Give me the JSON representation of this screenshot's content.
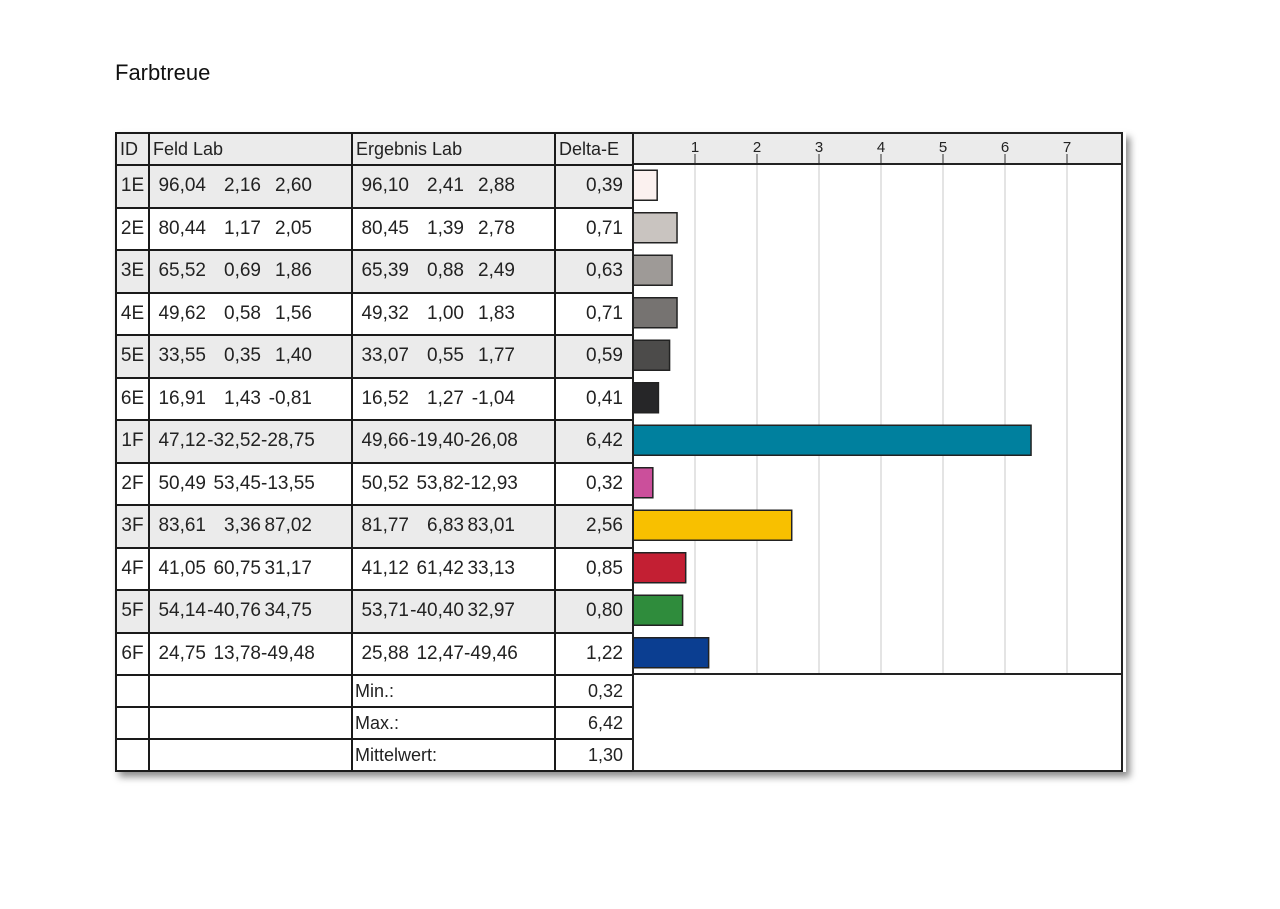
{
  "title": "Farbtreue",
  "headers": {
    "id": "ID",
    "feld": "Feld Lab",
    "ergebnis": "Ergebnis Lab",
    "delta": "Delta-E"
  },
  "rows": [
    {
      "id": "1E",
      "feld": [
        "96,04",
        "2,16",
        "2,60"
      ],
      "erg": [
        "96,10",
        "2,41",
        "2,88"
      ],
      "de": "0,39",
      "color": "#fbf1ef"
    },
    {
      "id": "2E",
      "feld": [
        "80,44",
        "1,17",
        "2,05"
      ],
      "erg": [
        "80,45",
        "1,39",
        "2,78"
      ],
      "de": "0,71",
      "color": "#c9c4c0"
    },
    {
      "id": "3E",
      "feld": [
        "65,52",
        "0,69",
        "1,86"
      ],
      "erg": [
        "65,39",
        "0,88",
        "2,49"
      ],
      "de": "0,63",
      "color": "#9e9a97"
    },
    {
      "id": "4E",
      "feld": [
        "49,62",
        "0,58",
        "1,56"
      ],
      "erg": [
        "49,32",
        "1,00",
        "1,83"
      ],
      "de": "0,71",
      "color": "#767371"
    },
    {
      "id": "5E",
      "feld": [
        "33,55",
        "0,35",
        "1,40"
      ],
      "erg": [
        "33,07",
        "0,55",
        "1,77"
      ],
      "de": "0,59",
      "color": "#4c4b4a"
    },
    {
      "id": "6E",
      "feld": [
        "16,91",
        "1,43",
        "-0,81"
      ],
      "erg": [
        "16,52",
        "1,27",
        "-1,04"
      ],
      "de": "0,41",
      "color": "#262628"
    },
    {
      "id": "1F",
      "feld": [
        "47,12",
        "-32,52",
        "-28,75"
      ],
      "erg": [
        "49,66",
        "-19,40",
        "-26,08"
      ],
      "de": "6,42",
      "color": "#00809e"
    },
    {
      "id": "2F",
      "feld": [
        "50,49",
        "53,45",
        "-13,55"
      ],
      "erg": [
        "50,52",
        "53,82",
        "-12,93"
      ],
      "de": "0,32",
      "color": "#cb4f9b"
    },
    {
      "id": "3F",
      "feld": [
        "83,61",
        "3,36",
        "87,02"
      ],
      "erg": [
        "81,77",
        "6,83",
        "83,01"
      ],
      "de": "2,56",
      "color": "#f8c000"
    },
    {
      "id": "4F",
      "feld": [
        "41,05",
        "60,75",
        "31,17"
      ],
      "erg": [
        "41,12",
        "61,42",
        "33,13"
      ],
      "de": "0,85",
      "color": "#c31f33"
    },
    {
      "id": "5F",
      "feld": [
        "54,14",
        "-40,76",
        "34,75"
      ],
      "erg": [
        "53,71",
        "-40,40",
        "32,97"
      ],
      "de": "0,80",
      "color": "#2f8c3c"
    },
    {
      "id": "6F",
      "feld": [
        "24,75",
        "13,78",
        "-49,48"
      ],
      "erg": [
        "25,88",
        "12,47",
        "-49,46"
      ],
      "de": "1,22",
      "color": "#0b3e91"
    }
  ],
  "stats": [
    {
      "label": "Min.:",
      "value": "0,32"
    },
    {
      "label": "Max.:",
      "value": "6,42"
    },
    {
      "label": "Mittelwert:",
      "value": "1,30"
    }
  ],
  "chart_data": {
    "type": "bar",
    "orientation": "horizontal",
    "categories": [
      "1E",
      "2E",
      "3E",
      "4E",
      "5E",
      "6E",
      "1F",
      "2F",
      "3F",
      "4F",
      "5F",
      "6F"
    ],
    "values": [
      0.39,
      0.71,
      0.63,
      0.71,
      0.59,
      0.41,
      6.42,
      0.32,
      2.56,
      0.85,
      0.8,
      1.22
    ],
    "xticks": [
      "1",
      "2",
      "3",
      "4",
      "5",
      "6",
      "7"
    ],
    "xlim": [
      0,
      8
    ],
    "grid": true,
    "ylabel": "Delta-E"
  }
}
